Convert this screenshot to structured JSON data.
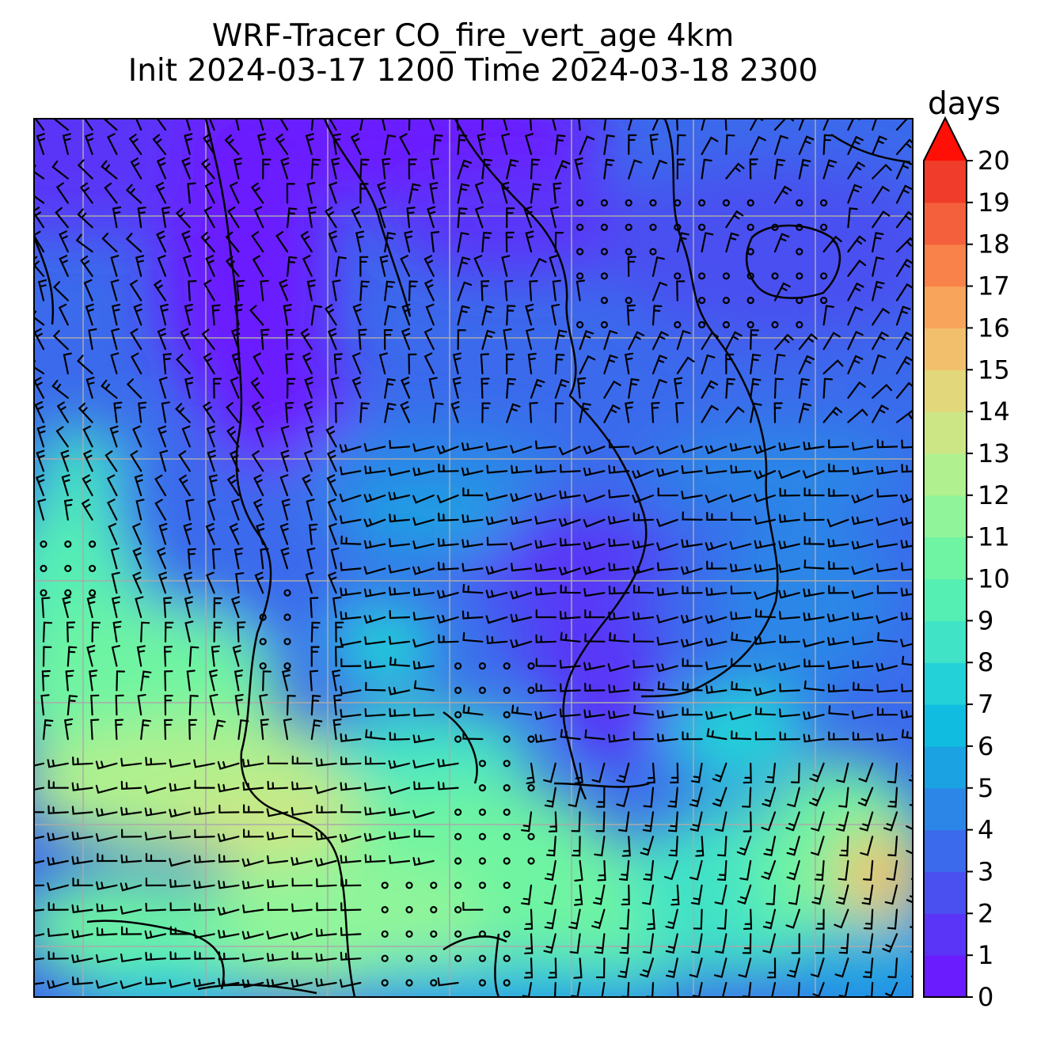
{
  "title": {
    "line1": "WRF-Tracer CO_fire_vert_age 4km",
    "line2": "Init 2024-03-17 1200 Time 2024-03-18 2300"
  },
  "colorbar": {
    "units": "days",
    "min": 0,
    "max": 20,
    "step": 1,
    "extend": "max",
    "tick_labels": [
      "0",
      "1",
      "2",
      "3",
      "4",
      "5",
      "6",
      "7",
      "8",
      "9",
      "10",
      "11",
      "12",
      "13",
      "14",
      "15",
      "16",
      "17",
      "18",
      "19",
      "20"
    ],
    "colors": [
      "#6a1cff",
      "#5a35f8",
      "#4a50f0",
      "#3b6aec",
      "#2b86e7",
      "#1aa2e2",
      "#10bde0",
      "#22d2d8",
      "#40e3c6",
      "#55efb4",
      "#6ef4a2",
      "#90f59a",
      "#b0f08e",
      "#cce686",
      "#e2d77a",
      "#f2c06c",
      "#f8a45a",
      "#f8824a",
      "#f4603c",
      "#f03c2a",
      "#f01a12"
    ],
    "extend_color": "#ff0f05"
  },
  "map": {
    "field": "CO_fire_vert_age",
    "overlays": [
      "wind-barbs",
      "coastlines",
      "gridlines"
    ],
    "background_level": 3
  }
}
